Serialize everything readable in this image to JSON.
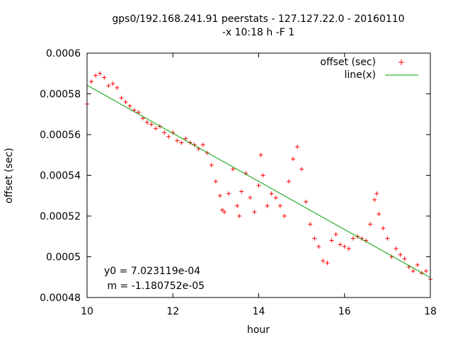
{
  "chart_data": {
    "type": "scatter",
    "title_line1": "gps0/192.168.241.91 peerstats - 127.127.22.0 - 20160110",
    "title_line2": "-x 10:18 h -F 1",
    "xlabel": "hour",
    "ylabel": "offset (sec)",
    "xlim": [
      10,
      18
    ],
    "ylim": [
      0.00048,
      0.0006
    ],
    "x_ticks": [
      10,
      12,
      14,
      16,
      18
    ],
    "x_tick_labels": [
      "10",
      "12",
      "14",
      "16",
      "18"
    ],
    "y_ticks": [
      0.00048,
      0.0005,
      0.00052,
      0.00054,
      0.00056,
      0.00058,
      0.0006
    ],
    "y_tick_labels": [
      "0.00048",
      "0.0005",
      "0.00052",
      "0.00054",
      "0.00056",
      "0.00058",
      "0.0006"
    ],
    "grid": false,
    "legend_position": "top-right",
    "series": [
      {
        "name": "offset (sec)",
        "type": "scatter",
        "marker": "+",
        "color": "#ff0000",
        "x": [
          10.0,
          10.1,
          10.2,
          10.3,
          10.4,
          10.5,
          10.6,
          10.7,
          10.8,
          10.9,
          11.0,
          11.1,
          11.2,
          11.3,
          11.4,
          11.5,
          11.6,
          11.7,
          11.8,
          11.9,
          12.0,
          12.1,
          12.2,
          12.3,
          12.4,
          12.5,
          12.6,
          12.7,
          12.8,
          12.9,
          13.0,
          13.1,
          13.15,
          13.2,
          13.3,
          13.4,
          13.5,
          13.55,
          13.6,
          13.7,
          13.8,
          13.9,
          14.0,
          14.05,
          14.1,
          14.2,
          14.3,
          14.4,
          14.5,
          14.6,
          14.7,
          14.8,
          14.9,
          15.0,
          15.1,
          15.2,
          15.3,
          15.4,
          15.5,
          15.6,
          15.7,
          15.8,
          15.9,
          16.0,
          16.1,
          16.2,
          16.3,
          16.4,
          16.5,
          16.6,
          16.7,
          16.75,
          16.8,
          16.9,
          17.0,
          17.1,
          17.2,
          17.3,
          17.4,
          17.5,
          17.6,
          17.7,
          17.8,
          17.9,
          18.0
        ],
        "y": [
          0.000575,
          0.000586,
          0.000589,
          0.00059,
          0.000588,
          0.000584,
          0.000585,
          0.000583,
          0.000578,
          0.000576,
          0.000574,
          0.000572,
          0.000571,
          0.000568,
          0.000566,
          0.000565,
          0.000563,
          0.000564,
          0.000561,
          0.000559,
          0.000561,
          0.000557,
          0.000556,
          0.000558,
          0.000556,
          0.000555,
          0.000553,
          0.000555,
          0.000551,
          0.000545,
          0.000537,
          0.00053,
          0.000523,
          0.000522,
          0.000531,
          0.000543,
          0.000525,
          0.00052,
          0.000532,
          0.000541,
          0.000529,
          0.000522,
          0.000535,
          0.00055,
          0.00054,
          0.000525,
          0.000531,
          0.000529,
          0.000525,
          0.00052,
          0.000537,
          0.000548,
          0.000554,
          0.000543,
          0.000527,
          0.000516,
          0.000509,
          0.000505,
          0.000498,
          0.000497,
          0.000508,
          0.000511,
          0.000506,
          0.000505,
          0.000504,
          0.000509,
          0.00051,
          0.000509,
          0.000508,
          0.000516,
          0.000528,
          0.000531,
          0.000521,
          0.000514,
          0.000509,
          0.0005,
          0.000504,
          0.000501,
          0.000499,
          0.000495,
          0.000493,
          0.000496,
          0.000492,
          0.000493,
          0.000489
        ]
      },
      {
        "name": "line(x)",
        "type": "line",
        "color": "#00a000",
        "y0": 0.0007023119,
        "m": -1.180752e-05,
        "x": [
          10.0,
          18.0
        ],
        "y": [
          0.0005842367,
          0.0004897765
        ]
      }
    ],
    "annotations": {
      "y0_text": "y0 = 7.023119e-04",
      "m_text": " m = -1.180752e-05"
    }
  }
}
